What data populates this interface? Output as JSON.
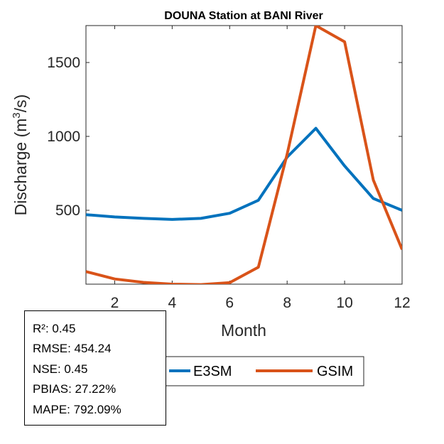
{
  "chart_data": {
    "type": "line",
    "title": "DOUNA  Station at  BANI  River",
    "xlabel": "Month",
    "ylabel_main": "Discharge (m",
    "ylabel_sup": "3",
    "ylabel_tail": "/s)",
    "xlim": [
      1,
      12
    ],
    "ylim": [
      0,
      1750
    ],
    "xticks": [
      2,
      4,
      6,
      8,
      10,
      12
    ],
    "yticks": [
      500,
      1000,
      1500
    ],
    "x": [
      1,
      2,
      3,
      4,
      5,
      6,
      7,
      8,
      9,
      10,
      11,
      12
    ],
    "series": [
      {
        "name": "E3SM",
        "color": "#0072BD",
        "values": [
          470,
          455,
          445,
          438,
          445,
          480,
          568,
          860,
          1055,
          800,
          580,
          500
        ]
      },
      {
        "name": "GSIM",
        "color": "#D95319",
        "values": [
          85,
          35,
          12,
          0,
          -3,
          10,
          115,
          880,
          1750,
          1640,
          705,
          235
        ]
      }
    ],
    "legend_location": "bottom"
  },
  "stats": {
    "r2": "R²: 0.45",
    "rmse": "RMSE: 454.24",
    "nse": "NSE: 0.45",
    "pbias": "PBIAS: 27.22%",
    "mape": "MAPE: 792.09%"
  }
}
